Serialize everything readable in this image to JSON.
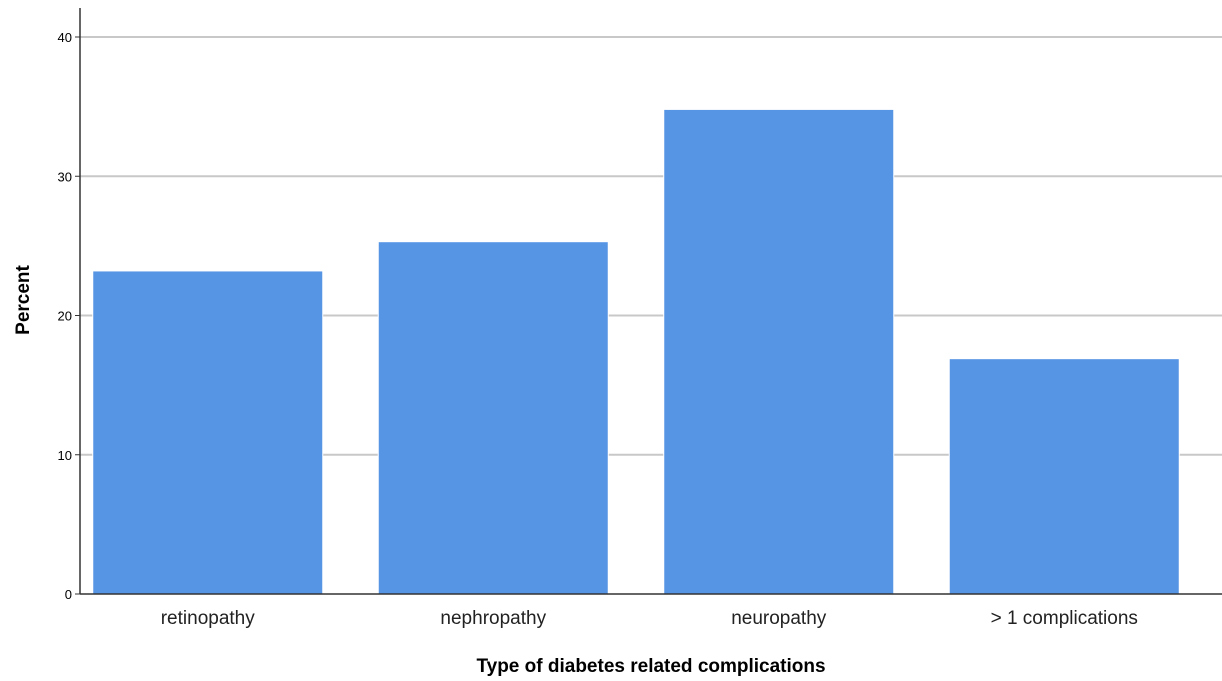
{
  "chart_data": {
    "type": "bar",
    "title": "",
    "categories": [
      "retinopathy",
      "nephropathy",
      "neuropathy",
      "> 1 complications"
    ],
    "values": [
      23.2,
      25.3,
      34.8,
      16.9
    ],
    "xlabel": "Type of diabetes related complications",
    "ylabel": "Percent",
    "ylim": [
      0,
      40
    ],
    "yticks": [
      0,
      10,
      20,
      30,
      40
    ],
    "grid": true,
    "legend": "none",
    "bar_color": "#5694e4",
    "grid_color": "#c8c8c8"
  }
}
